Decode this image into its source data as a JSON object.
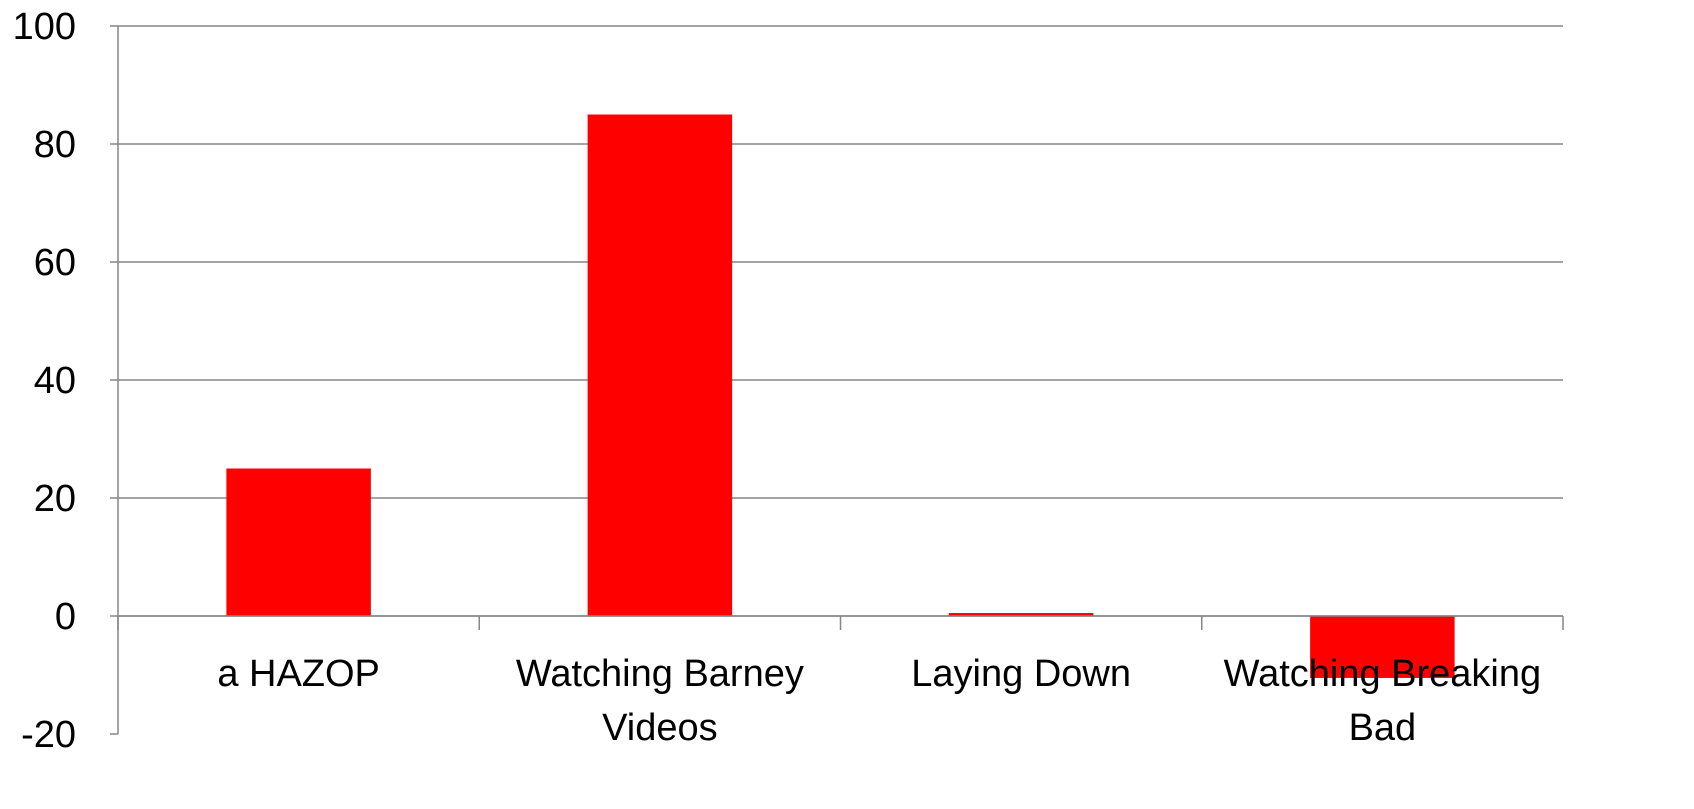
{
  "chart_data": {
    "type": "bar",
    "title": "",
    "xlabel": "",
    "ylabel": "",
    "categories": [
      "a HAZOP",
      "Watching Barney Videos",
      "Laying Down",
      "Watching Breaking Bad"
    ],
    "category_label_lines": [
      [
        "a HAZOP"
      ],
      [
        "Watching Barney",
        "Videos"
      ],
      [
        "Laying Down"
      ],
      [
        "Watching Breaking",
        "Bad"
      ]
    ],
    "values": [
      25,
      85,
      0.5,
      -10.5
    ],
    "ylim": [
      -20,
      100
    ],
    "yticks": [
      100,
      80,
      60,
      40,
      20,
      0,
      -20
    ],
    "ytick_labels": [
      "100",
      "80",
      "60",
      "40",
      "20",
      "0",
      "-20"
    ],
    "grid": true,
    "legend": "none",
    "bar_color": "#ff0000",
    "grid_color": "#868686",
    "axis_color": "#868686"
  }
}
